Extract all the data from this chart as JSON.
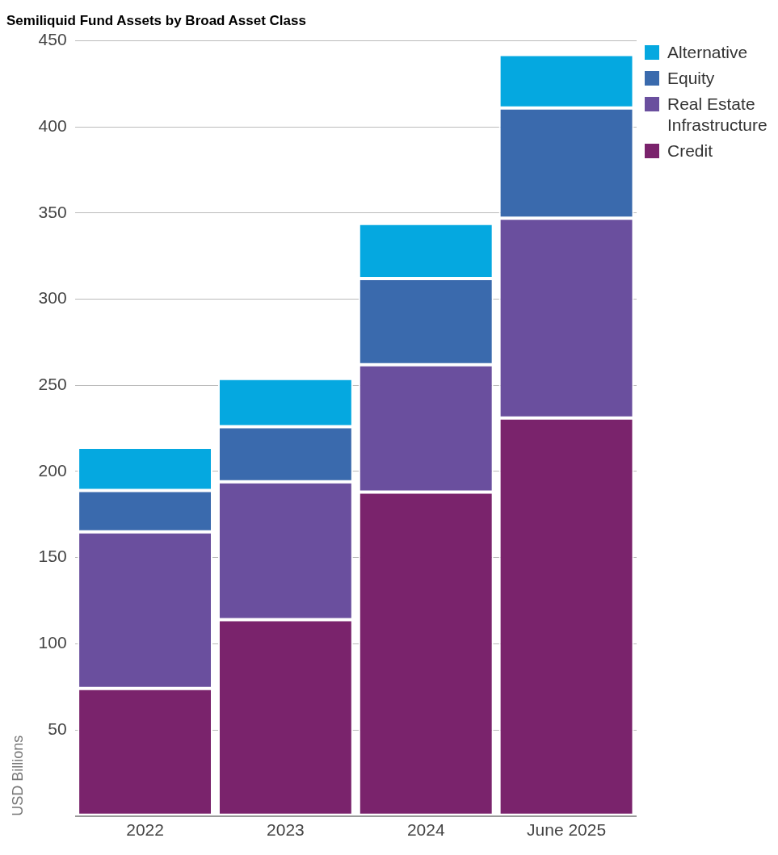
{
  "chart_data": {
    "type": "bar",
    "title": "Semiliquid Fund Assets by Broad Asset Class",
    "ylabel": "USD Billions",
    "categories": [
      "2022",
      "2023",
      "2024",
      "June 2025"
    ],
    "stacked": true,
    "series": [
      {
        "name": "Credit",
        "color": "#7a236c",
        "values": [
          74,
          114,
          188,
          231
        ]
      },
      {
        "name": "Real Estate Infrastructure",
        "color": "#6a4f9e",
        "values": [
          91,
          80,
          74,
          116
        ]
      },
      {
        "name": "Equity",
        "color": "#3a6aad",
        "values": [
          24,
          32,
          50,
          64
        ]
      },
      {
        "name": "Alternative",
        "color": "#05a8e0",
        "values": [
          25,
          28,
          32,
          31
        ]
      }
    ],
    "ylim": [
      0,
      450
    ],
    "yticks": [
      {
        "value": 0,
        "label": null
      },
      50,
      100,
      150,
      200,
      250,
      300,
      350,
      400,
      450
    ],
    "grid": "y",
    "legend": "top right"
  }
}
